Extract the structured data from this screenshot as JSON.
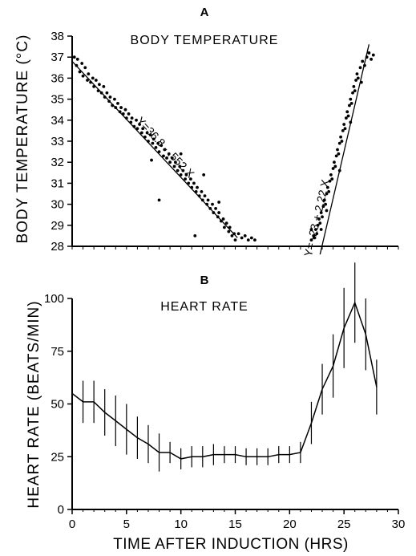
{
  "chart_data": [
    {
      "type": "scatter",
      "panel": "A",
      "title": "BODY TEMPERATURE",
      "ylabel": "BODY TEMPERATURE (°C)",
      "xlabel": "TIME AFTER INDUCTION (HRS)",
      "xlim": [
        0,
        30
      ],
      "ylim": [
        28,
        38
      ],
      "yticks": [
        28,
        29,
        30,
        31,
        32,
        33,
        34,
        35,
        36,
        37,
        38
      ],
      "grid": false,
      "series": [
        {
          "points": [
            [
              0.2,
              37.0
            ],
            [
              0.4,
              36.6
            ],
            [
              0.5,
              36.9
            ],
            [
              0.7,
              36.3
            ],
            [
              0.9,
              36.7
            ],
            [
              1.0,
              36.1
            ],
            [
              1.2,
              36.5
            ],
            [
              1.4,
              35.9
            ],
            [
              1.5,
              36.2
            ],
            [
              1.7,
              35.8
            ],
            [
              1.9,
              36.0
            ],
            [
              2.0,
              35.6
            ],
            [
              2.2,
              35.9
            ],
            [
              2.4,
              35.4
            ],
            [
              2.5,
              35.7
            ],
            [
              2.7,
              35.3
            ],
            [
              2.9,
              35.6
            ],
            [
              3.0,
              35.1
            ],
            [
              3.2,
              35.3
            ],
            [
              3.4,
              34.9
            ],
            [
              3.5,
              35.1
            ],
            [
              3.7,
              34.7
            ],
            [
              3.9,
              35.0
            ],
            [
              4.0,
              34.6
            ],
            [
              4.2,
              34.8
            ],
            [
              4.4,
              34.4
            ],
            [
              4.5,
              34.6
            ],
            [
              4.7,
              34.3
            ],
            [
              4.9,
              34.5
            ],
            [
              5.0,
              34.1
            ],
            [
              5.2,
              34.3
            ],
            [
              5.4,
              33.9
            ],
            [
              5.5,
              34.1
            ],
            [
              5.7,
              33.7
            ],
            [
              5.9,
              34.0
            ],
            [
              6.0,
              33.6
            ],
            [
              6.2,
              33.8
            ],
            [
              6.4,
              33.4
            ],
            [
              6.5,
              33.6
            ],
            [
              6.7,
              33.2
            ],
            [
              6.9,
              33.4
            ],
            [
              7.0,
              33.0
            ],
            [
              7.2,
              33.3
            ],
            [
              7.4,
              32.9
            ],
            [
              7.5,
              33.1
            ],
            [
              7.7,
              32.7
            ],
            [
              7.9,
              32.9
            ],
            [
              8.0,
              32.5
            ],
            [
              8.2,
              32.8
            ],
            [
              8.4,
              32.3
            ],
            [
              8.5,
              32.6
            ],
            [
              8.7,
              32.2
            ],
            [
              8.9,
              32.4
            ],
            [
              9.0,
              32.0
            ],
            [
              9.2,
              32.2
            ],
            [
              9.4,
              31.8
            ],
            [
              9.5,
              32.0
            ],
            [
              9.7,
              31.6
            ],
            [
              9.9,
              31.8
            ],
            [
              10.0,
              31.4
            ],
            [
              10.2,
              31.6
            ],
            [
              10.4,
              31.2
            ],
            [
              10.5,
              31.4
            ],
            [
              10.7,
              31.0
            ],
            [
              10.9,
              31.2
            ],
            [
              11.0,
              30.8
            ],
            [
              11.2,
              31.0
            ],
            [
              11.4,
              30.6
            ],
            [
              11.5,
              30.8
            ],
            [
              11.7,
              30.4
            ],
            [
              11.9,
              30.6
            ],
            [
              12.0,
              30.2
            ],
            [
              12.2,
              30.4
            ],
            [
              12.4,
              30.0
            ],
            [
              12.5,
              30.2
            ],
            [
              12.7,
              29.8
            ],
            [
              12.9,
              30.0
            ],
            [
              13.0,
              29.6
            ],
            [
              13.2,
              29.8
            ],
            [
              13.4,
              29.4
            ],
            [
              13.5,
              29.6
            ],
            [
              13.7,
              29.2
            ],
            [
              13.9,
              29.3
            ],
            [
              14.0,
              28.9
            ],
            [
              14.2,
              29.1
            ],
            [
              14.4,
              28.7
            ],
            [
              14.5,
              28.9
            ],
            [
              14.7,
              28.5
            ],
            [
              14.9,
              28.6
            ],
            [
              15.0,
              28.3
            ],
            [
              15.3,
              28.6
            ],
            [
              15.6,
              28.4
            ],
            [
              15.9,
              28.5
            ],
            [
              16.2,
              28.3
            ],
            [
              16.5,
              28.4
            ],
            [
              16.8,
              28.3
            ],
            [
              10.0,
              32.4
            ],
            [
              12.1,
              31.4
            ],
            [
              13.5,
              30.1
            ],
            [
              7.3,
              32.1
            ],
            [
              8.0,
              30.2
            ],
            [
              11.3,
              28.5
            ],
            [
              22.0,
              28.3
            ],
            [
              22.2,
              28.5
            ],
            [
              22.3,
              28.4
            ],
            [
              22.4,
              28.8
            ],
            [
              22.5,
              28.6
            ],
            [
              22.6,
              29.0
            ],
            [
              22.7,
              29.3
            ],
            [
              22.8,
              29.1
            ],
            [
              22.9,
              29.6
            ],
            [
              23.0,
              29.4
            ],
            [
              23.1,
              29.9
            ],
            [
              23.2,
              30.2
            ],
            [
              23.3,
              30.0
            ],
            [
              23.4,
              30.5
            ],
            [
              23.5,
              30.8
            ],
            [
              23.6,
              30.6
            ],
            [
              23.7,
              31.1
            ],
            [
              23.8,
              31.4
            ],
            [
              23.9,
              31.2
            ],
            [
              24.0,
              31.7
            ],
            [
              24.1,
              32.0
            ],
            [
              24.2,
              31.8
            ],
            [
              24.3,
              32.3
            ],
            [
              24.4,
              32.6
            ],
            [
              24.5,
              32.4
            ],
            [
              24.6,
              32.9
            ],
            [
              24.7,
              33.2
            ],
            [
              24.8,
              33.0
            ],
            [
              24.9,
              33.5
            ],
            [
              25.0,
              33.8
            ],
            [
              25.1,
              33.6
            ],
            [
              25.2,
              34.1
            ],
            [
              25.3,
              34.4
            ],
            [
              25.4,
              34.2
            ],
            [
              25.5,
              34.7
            ],
            [
              25.6,
              35.0
            ],
            [
              25.7,
              34.8
            ],
            [
              25.8,
              35.3
            ],
            [
              25.9,
              35.6
            ],
            [
              26.0,
              35.4
            ],
            [
              26.1,
              35.9
            ],
            [
              26.2,
              36.2
            ],
            [
              26.3,
              36.0
            ],
            [
              26.5,
              36.5
            ],
            [
              26.7,
              36.8
            ],
            [
              26.9,
              36.6
            ],
            [
              27.1,
              37.0
            ],
            [
              27.3,
              37.2
            ],
            [
              27.5,
              36.9
            ],
            [
              27.7,
              37.1
            ],
            [
              22.0,
              28.8
            ],
            [
              22.9,
              28.8
            ],
            [
              23.4,
              29.7
            ],
            [
              24.6,
              31.6
            ],
            [
              25.6,
              33.9
            ],
            [
              26.6,
              35.8
            ]
          ]
        }
      ],
      "fit_lines": [
        {
          "label": "Y=36.8 - .552 X",
          "intercept": 36.8,
          "slope": -0.552,
          "x_range": [
            0,
            15.2
          ]
        },
        {
          "label": "Y= -23 + 2.22 X",
          "intercept": -23,
          "slope": 2.22,
          "x_range": [
            22.8,
            27.3
          ]
        }
      ]
    },
    {
      "type": "line",
      "panel": "B",
      "title": "HEART RATE",
      "ylabel": "HEART RATE (BEATS/MIN)",
      "xlabel": "TIME AFTER INDUCTION (HRS)",
      "xlim": [
        0,
        30
      ],
      "ylim": [
        0,
        100
      ],
      "xticks": [
        0,
        5,
        10,
        15,
        20,
        25,
        30
      ],
      "yticks": [
        0,
        25,
        50,
        75,
        100
      ],
      "grid": false,
      "series": [
        {
          "x": [
            0,
            1,
            2,
            3,
            4,
            5,
            6,
            7,
            8,
            9,
            10,
            11,
            12,
            13,
            14,
            15,
            16,
            17,
            18,
            19,
            20,
            21,
            22,
            23,
            24,
            25,
            26,
            27,
            28
          ],
          "y": [
            55,
            51,
            51,
            46,
            42,
            38,
            34,
            31,
            27,
            27,
            24,
            25,
            25,
            26,
            26,
            26,
            25,
            25,
            25,
            26,
            26,
            27,
            41,
            57,
            68,
            86,
            98,
            83,
            58
          ],
          "error": [
            9,
            10,
            10,
            11,
            12,
            12,
            10,
            9,
            9,
            5,
            5,
            5,
            5,
            5,
            4,
            4,
            4,
            4,
            4,
            4,
            4,
            5,
            10,
            12,
            15,
            19,
            19,
            17,
            13
          ]
        }
      ]
    }
  ]
}
